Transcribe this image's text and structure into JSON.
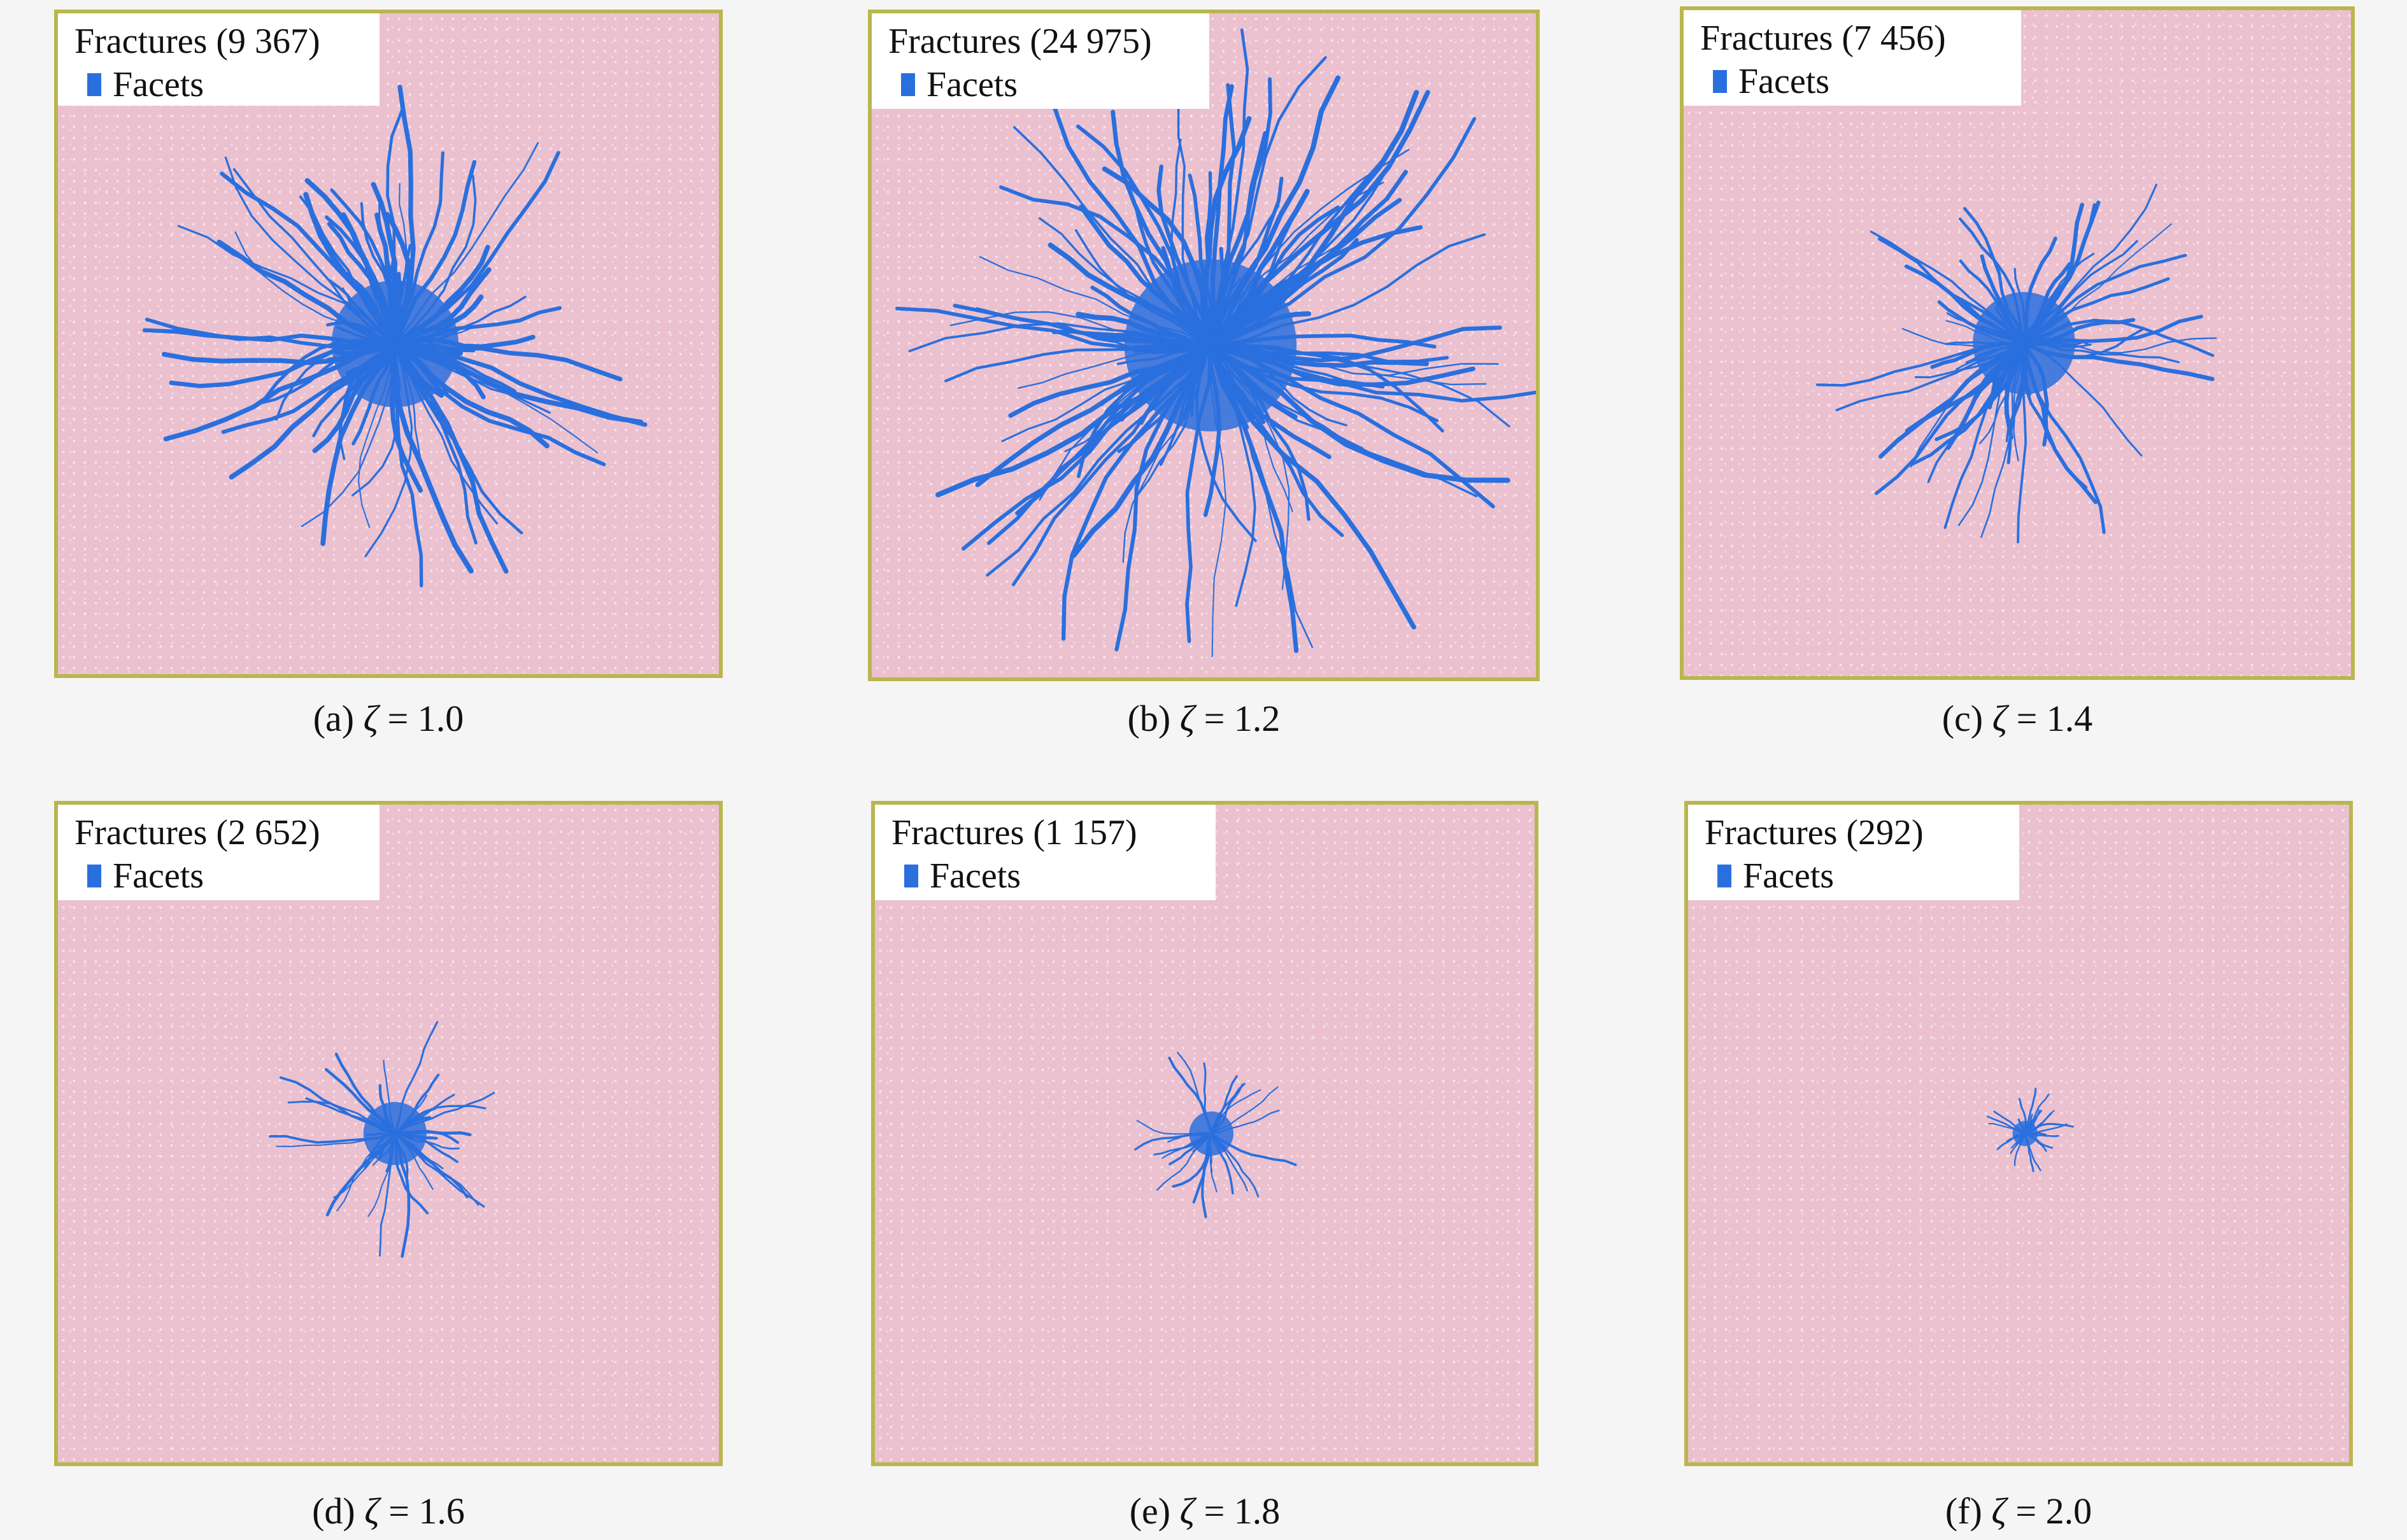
{
  "panels": [
    {
      "legend_title": "Fractures (9 367)",
      "legend_item": "Facets",
      "caption_prefix": "(a) ",
      "symbol": "ζ",
      "caption_value": " = 1.0",
      "spread": 1.0
    },
    {
      "legend_title": "Fractures (24 975)",
      "legend_item": "Facets",
      "caption_prefix": "(b) ",
      "symbol": "ζ",
      "caption_value": " = 1.2",
      "spread": 1.35
    },
    {
      "legend_title": "Fractures (7 456)",
      "legend_item": "Facets",
      "caption_prefix": "(c) ",
      "symbol": "ζ",
      "caption_value": " = 1.4",
      "spread": 0.8
    },
    {
      "legend_title": "Fractures (2 652)",
      "legend_item": "Facets",
      "caption_prefix": "(d) ",
      "symbol": "ζ",
      "caption_value": " = 1.6",
      "spread": 0.5
    },
    {
      "legend_title": "Fractures (1 157)",
      "legend_item": "Facets",
      "caption_prefix": "(e) ",
      "symbol": "ζ",
      "caption_value": " = 1.8",
      "spread": 0.35
    },
    {
      "legend_title": "Fractures (292)",
      "legend_item": "Facets",
      "caption_prefix": "(f) ",
      "symbol": "ζ",
      "caption_value": " = 2.0",
      "spread": 0.2
    }
  ],
  "colors": {
    "fracture": "#2a6fde",
    "matrix": "#ebc1cf",
    "border": "#b9b64f"
  }
}
